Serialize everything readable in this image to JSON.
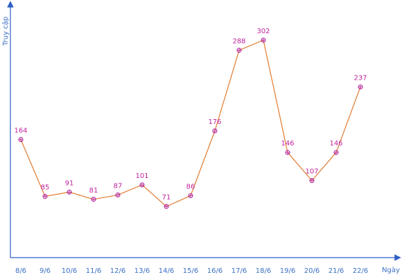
{
  "chart_data": {
    "type": "line",
    "xlabel": "Ngày",
    "ylabel": "Truy cập",
    "categories": [
      "8/6",
      "9/6",
      "10/6",
      "11/6",
      "12/6",
      "13/6",
      "14/6",
      "15/6",
      "16/6",
      "17/6",
      "18/6",
      "19/6",
      "20/6",
      "21/6",
      "22/6"
    ],
    "series": [
      {
        "values": [
          164,
          85,
          91,
          81,
          87,
          101,
          71,
          86,
          176,
          288,
          302,
          146,
          107,
          146,
          237
        ]
      }
    ],
    "ylim": [
      0,
      352
    ],
    "grid": false,
    "legend": "none",
    "colors": {
      "axis": "#2f5fc4",
      "line": "#e07a2e",
      "marker": "#b0209e",
      "data_label": "#c0269e",
      "tick_label": "#3a6fc4"
    }
  }
}
